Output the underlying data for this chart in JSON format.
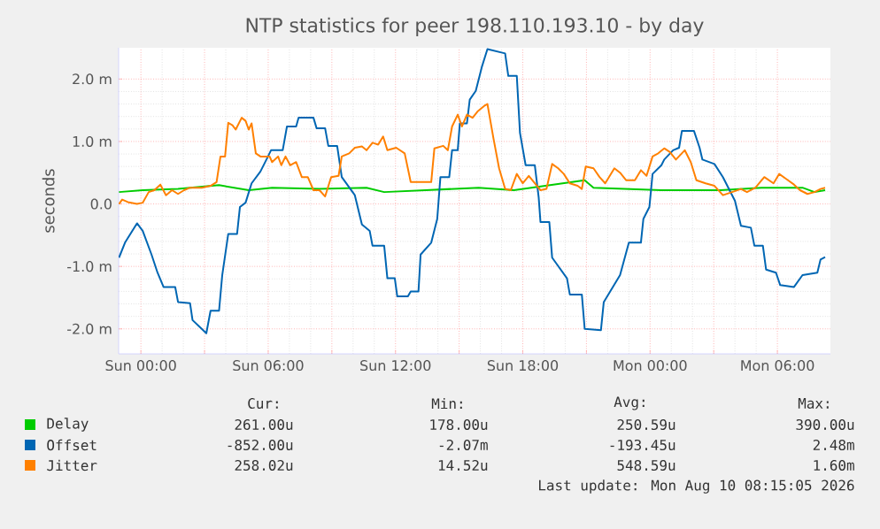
{
  "chart_data": {
    "type": "line",
    "title": "NTP statistics for peer 198.110.193.10 - by day",
    "ylabel": "seconds",
    "xlim": [
      "2026-08-08T22:57",
      "2026-08-10T08:30"
    ],
    "ylim": [
      -2.4,
      2.5
    ],
    "xticks": [
      {
        "value": "2026-08-09T00:00",
        "label": "Sun 00:00"
      },
      {
        "value": "2026-08-09T03:00",
        "label": null
      },
      {
        "value": "2026-08-09T06:00",
        "label": "Sun 06:00"
      },
      {
        "value": "2026-08-09T09:00",
        "label": null
      },
      {
        "value": "2026-08-09T12:00",
        "label": "Sun 12:00"
      },
      {
        "value": "2026-08-09T15:00",
        "label": null
      },
      {
        "value": "2026-08-09T18:00",
        "label": "Sun 18:00"
      },
      {
        "value": "2026-08-09T21:00",
        "label": null
      },
      {
        "value": "2026-08-10T00:00",
        "label": "Mon 00:00"
      },
      {
        "value": "2026-08-10T03:00",
        "label": null
      },
      {
        "value": "2026-08-10T06:00",
        "label": "Mon 06:00"
      }
    ],
    "yticks": [
      {
        "value": -2,
        "label": "-2.0 m"
      },
      {
        "value": -1,
        "label": "-1.0 m"
      },
      {
        "value": 0,
        "label": "0.0"
      },
      {
        "value": 1,
        "label": "1.0 m"
      },
      {
        "value": 2,
        "label": "2.0 m"
      }
    ],
    "grid": true,
    "legend": "bottom",
    "series": [
      {
        "name": "Delay",
        "color": "#00cc00",
        "x": [
          "2026-08-08T22:58",
          "2026-08-09T00:05",
          "2026-08-09T01:45",
          "2026-08-09T03:41",
          "2026-08-09T05:05",
          "2026-08-09T06:11",
          "2026-08-09T08:25",
          "2026-08-09T10:38",
          "2026-08-09T11:28",
          "2026-08-09T13:25",
          "2026-08-09T15:55",
          "2026-08-09T17:35",
          "2026-08-09T20:55",
          "2026-08-09T21:20",
          "2026-08-10T00:32",
          "2026-08-10T03:19",
          "2026-08-10T05:15",
          "2026-08-10T07:11",
          "2026-08-10T07:45",
          "2026-08-10T08:15"
        ],
        "values": [
          0.19,
          0.22,
          0.24,
          0.3,
          0.22,
          0.26,
          0.24,
          0.26,
          0.19,
          0.22,
          0.26,
          0.22,
          0.38,
          0.26,
          0.22,
          0.22,
          0.26,
          0.26,
          0.19,
          0.22
        ]
      },
      {
        "name": "Offset",
        "color": "#0066b3",
        "x": [
          "2026-08-08T22:58",
          "2026-08-08T23:15",
          "2026-08-08T23:49",
          "2026-08-09T00:05",
          "2026-08-09T00:30",
          "2026-08-09T00:47",
          "2026-08-09T01:04",
          "2026-08-09T01:37",
          "2026-08-09T01:45",
          "2026-08-09T02:19",
          "2026-08-09T02:26",
          "2026-08-09T02:52",
          "2026-08-09T03:05",
          "2026-08-09T03:17",
          "2026-08-09T03:41",
          "2026-08-09T03:50",
          "2026-08-09T04:07",
          "2026-08-09T04:32",
          "2026-08-09T04:40",
          "2026-08-09T04:56",
          "2026-08-09T05:13",
          "2026-08-09T05:38",
          "2026-08-09T05:55",
          "2026-08-09T06:08",
          "2026-08-09T06:41",
          "2026-08-09T06:53",
          "2026-08-09T07:19",
          "2026-08-09T07:26",
          "2026-08-09T08:08",
          "2026-08-09T08:17",
          "2026-08-09T08:41",
          "2026-08-09T08:50",
          "2026-08-09T09:15",
          "2026-08-09T09:28",
          "2026-08-09T10:05",
          "2026-08-09T10:25",
          "2026-08-09T10:47",
          "2026-08-09T10:55",
          "2026-08-09T11:28",
          "2026-08-09T11:37",
          "2026-08-09T11:58",
          "2026-08-09T12:05",
          "2026-08-09T12:35",
          "2026-08-09T12:43",
          "2026-08-09T13:05",
          "2026-08-09T13:11",
          "2026-08-09T13:41",
          "2026-08-09T13:58",
          "2026-08-09T14:07",
          "2026-08-09T14:32",
          "2026-08-09T14:40",
          "2026-08-09T14:56",
          "2026-08-09T15:02",
          "2026-08-09T15:22",
          "2026-08-09T15:30",
          "2026-08-09T15:47",
          "2026-08-09T16:04",
          "2026-08-09T16:20",
          "2026-08-09T17:10",
          "2026-08-09T17:19",
          "2026-08-09T17:43",
          "2026-08-09T17:52",
          "2026-08-09T18:08",
          "2026-08-09T18:34",
          "2026-08-09T18:45",
          "2026-08-09T18:50",
          "2026-08-09T19:15",
          "2026-08-09T19:23",
          "2026-08-09T20:05",
          "2026-08-09T20:13",
          "2026-08-09T20:47",
          "2026-08-09T20:55",
          "2026-08-09T21:41",
          "2026-08-09T21:49",
          "2026-08-09T22:35",
          "2026-08-09T23:00",
          "2026-08-09T23:34",
          "2026-08-09T23:41",
          "2026-08-09T23:58",
          "2026-08-10T00:07",
          "2026-08-10T00:32",
          "2026-08-10T00:40",
          "2026-08-10T01:05",
          "2026-08-10T01:22",
          "2026-08-10T01:30",
          "2026-08-10T02:04",
          "2026-08-10T02:20",
          "2026-08-10T02:28",
          "2026-08-10T03:02",
          "2026-08-10T03:26",
          "2026-08-10T04:00",
          "2026-08-10T04:17",
          "2026-08-10T04:45",
          "2026-08-10T04:55",
          "2026-08-10T05:19",
          "2026-08-10T05:28",
          "2026-08-10T05:56",
          "2026-08-10T06:08",
          "2026-08-10T06:47",
          "2026-08-10T07:11",
          "2026-08-10T07:53",
          "2026-08-10T08:02",
          "2026-08-10T08:15"
        ],
        "values": [
          -0.86,
          -0.62,
          -0.31,
          -0.43,
          -0.81,
          -1.1,
          -1.33,
          -1.33,
          -1.57,
          -1.59,
          -1.86,
          -2.0,
          -2.07,
          -1.71,
          -1.71,
          -1.14,
          -0.48,
          -0.48,
          -0.05,
          0.02,
          0.33,
          0.52,
          0.71,
          0.86,
          0.86,
          1.24,
          1.24,
          1.38,
          1.38,
          1.21,
          1.21,
          0.93,
          0.93,
          0.43,
          0.14,
          -0.33,
          -0.43,
          -0.67,
          -0.67,
          -1.19,
          -1.19,
          -1.48,
          -1.48,
          -1.4,
          -1.4,
          -0.81,
          -0.62,
          -0.24,
          0.43,
          0.43,
          0.86,
          0.86,
          1.29,
          1.29,
          1.67,
          1.81,
          2.19,
          2.48,
          2.41,
          2.05,
          2.05,
          1.14,
          0.62,
          0.62,
          0.1,
          -0.29,
          -0.29,
          -0.86,
          -1.19,
          -1.45,
          -1.45,
          -2.0,
          -2.02,
          -1.57,
          -1.14,
          -0.62,
          -0.62,
          -0.24,
          -0.05,
          0.48,
          0.62,
          0.71,
          0.86,
          0.9,
          1.17,
          1.17,
          0.9,
          0.71,
          0.64,
          0.43,
          0.05,
          -0.35,
          -0.38,
          -0.67,
          -0.67,
          -1.05,
          -1.1,
          -1.3,
          -1.33,
          -1.14,
          -1.1,
          -0.89,
          -0.85
        ]
      },
      {
        "name": "Jitter",
        "color": "#ff8000",
        "x": [
          "2026-08-08T22:58",
          "2026-08-08T23:07",
          "2026-08-08T23:23",
          "2026-08-08T23:49",
          "2026-08-09T00:05",
          "2026-08-09T00:22",
          "2026-08-09T00:38",
          "2026-08-09T00:55",
          "2026-08-09T01:11",
          "2026-08-09T01:28",
          "2026-08-09T01:45",
          "2026-08-09T02:02",
          "2026-08-09T02:19",
          "2026-08-09T02:52",
          "2026-08-09T03:17",
          "2026-08-09T03:34",
          "2026-08-09T03:45",
          "2026-08-09T03:58",
          "2026-08-09T04:07",
          "2026-08-09T04:19",
          "2026-08-09T04:28",
          "2026-08-09T04:45",
          "2026-08-09T04:56",
          "2026-08-09T05:05",
          "2026-08-09T05:13",
          "2026-08-09T05:25",
          "2026-08-09T05:38",
          "2026-08-09T06:04",
          "2026-08-09T06:11",
          "2026-08-09T06:28",
          "2026-08-09T06:37",
          "2026-08-09T06:49",
          "2026-08-09T07:02",
          "2026-08-09T07:19",
          "2026-08-09T07:35",
          "2026-08-09T07:52",
          "2026-08-09T08:08",
          "2026-08-09T08:25",
          "2026-08-09T08:41",
          "2026-08-09T08:58",
          "2026-08-09T09:19",
          "2026-08-09T09:28",
          "2026-08-09T09:49",
          "2026-08-09T10:05",
          "2026-08-09T10:25",
          "2026-08-09T10:38",
          "2026-08-09T10:55",
          "2026-08-09T11:11",
          "2026-08-09T11:25",
          "2026-08-09T11:37",
          "2026-08-09T12:02",
          "2026-08-09T12:26",
          "2026-08-09T12:43",
          "2026-08-09T13:41",
          "2026-08-09T13:50",
          "2026-08-09T14:15",
          "2026-08-09T14:28",
          "2026-08-09T14:40",
          "2026-08-09T14:56",
          "2026-08-09T15:08",
          "2026-08-09T15:22",
          "2026-08-09T15:38",
          "2026-08-09T15:52",
          "2026-08-09T16:11",
          "2026-08-09T16:20",
          "2026-08-09T16:37",
          "2026-08-09T16:53",
          "2026-08-09T17:10",
          "2026-08-09T17:26",
          "2026-08-09T17:43",
          "2026-08-09T18:00",
          "2026-08-09T18:17",
          "2026-08-09T18:34",
          "2026-08-09T18:50",
          "2026-08-09T19:07",
          "2026-08-09T19:23",
          "2026-08-09T19:40",
          "2026-08-09T19:56",
          "2026-08-09T20:13",
          "2026-08-09T20:35",
          "2026-08-09T20:47",
          "2026-08-09T20:58",
          "2026-08-09T21:20",
          "2026-08-09T21:37",
          "2026-08-09T21:53",
          "2026-08-09T22:19",
          "2026-08-09T22:35",
          "2026-08-09T22:52",
          "2026-08-09T23:17",
          "2026-08-09T23:34",
          "2026-08-09T23:50",
          "2026-08-10T00:07",
          "2026-08-10T00:23",
          "2026-08-10T00:40",
          "2026-08-10T00:56",
          "2026-08-10T01:13",
          "2026-08-10T01:38",
          "2026-08-10T01:55",
          "2026-08-10T02:11",
          "2026-08-10T02:37",
          "2026-08-10T03:02",
          "2026-08-10T03:26",
          "2026-08-10T03:52",
          "2026-08-10T04:17",
          "2026-08-10T04:34",
          "2026-08-10T04:58",
          "2026-08-10T05:23",
          "2026-08-10T05:49",
          "2026-08-10T06:05",
          "2026-08-10T06:30",
          "2026-08-10T06:47",
          "2026-08-10T07:04",
          "2026-08-10T07:25",
          "2026-08-10T07:45",
          "2026-08-10T08:02",
          "2026-08-10T08:15"
        ],
        "values": [
          0.0,
          0.07,
          0.03,
          0.0,
          0.02,
          0.19,
          0.22,
          0.31,
          0.14,
          0.22,
          0.16,
          0.22,
          0.26,
          0.26,
          0.29,
          0.35,
          0.76,
          0.76,
          1.3,
          1.26,
          1.19,
          1.38,
          1.33,
          1.19,
          1.29,
          0.81,
          0.76,
          0.76,
          0.67,
          0.76,
          0.62,
          0.76,
          0.62,
          0.67,
          0.43,
          0.43,
          0.22,
          0.22,
          0.12,
          0.43,
          0.45,
          0.76,
          0.81,
          0.9,
          0.92,
          0.86,
          0.98,
          0.95,
          1.08,
          0.86,
          0.9,
          0.81,
          0.35,
          0.35,
          0.89,
          0.93,
          0.86,
          1.24,
          1.43,
          1.24,
          1.43,
          1.38,
          1.48,
          1.57,
          1.6,
          1.05,
          0.57,
          0.24,
          0.22,
          0.48,
          0.33,
          0.45,
          0.33,
          0.22,
          0.24,
          0.64,
          0.57,
          0.48,
          0.33,
          0.29,
          0.24,
          0.6,
          0.57,
          0.43,
          0.33,
          0.57,
          0.5,
          0.38,
          0.38,
          0.54,
          0.45,
          0.76,
          0.81,
          0.89,
          0.83,
          0.71,
          0.86,
          0.67,
          0.38,
          0.33,
          0.29,
          0.14,
          0.19,
          0.24,
          0.19,
          0.26,
          0.43,
          0.33,
          0.48,
          0.38,
          0.31,
          0.22,
          0.16,
          0.19,
          0.24,
          0.26
        ]
      }
    ],
    "annotations": [
      "Cur:",
      "Min:",
      "Avg:",
      "Max:",
      "261.00u",
      "178.00u",
      "250.59u",
      "390.00u",
      "-852.00u",
      "-2.07m",
      "-193.45u",
      "2.48m",
      "258.02u",
      "14.52u",
      "548.59u",
      "1.60m",
      "Last update: Mon Aug 10 08:15:05 2026"
    ]
  }
}
